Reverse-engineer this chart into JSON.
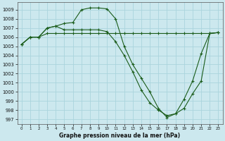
{
  "xlabel": "Graphe pression niveau de la mer (hPa)",
  "background_color": "#cce8ee",
  "grid_color": "#aad4dd",
  "line_color": "#1a5c1a",
  "ylim": [
    996.5,
    1009.8
  ],
  "xlim": [
    -0.5,
    23.5
  ],
  "yticks": [
    997,
    998,
    999,
    1000,
    1001,
    1002,
    1003,
    1004,
    1005,
    1006,
    1007,
    1008,
    1009
  ],
  "xticks": [
    0,
    1,
    2,
    3,
    4,
    5,
    6,
    7,
    8,
    9,
    10,
    11,
    12,
    13,
    14,
    15,
    16,
    17,
    18,
    19,
    20,
    21,
    22,
    23
  ],
  "series1_x": [
    0,
    1,
    2,
    3,
    4,
    5,
    6,
    7,
    8,
    9,
    10,
    11,
    12,
    13,
    14,
    15,
    16,
    17,
    18,
    19,
    20,
    21,
    22,
    23
  ],
  "series1_y": [
    1005.2,
    1006.0,
    1006.0,
    1006.4,
    1006.4,
    1006.4,
    1006.4,
    1006.4,
    1006.4,
    1006.4,
    1006.4,
    1006.4,
    1006.4,
    1006.4,
    1006.4,
    1006.4,
    1006.4,
    1006.4,
    1006.4,
    1006.4,
    1006.4,
    1006.4,
    1006.4,
    1006.5
  ],
  "series2_x": [
    0,
    1,
    2,
    3,
    4,
    5,
    6,
    7,
    8,
    9,
    10,
    11,
    12,
    13,
    14,
    15,
    16,
    17,
    18,
    19,
    20,
    21,
    22,
    23
  ],
  "series2_y": [
    1005.2,
    1006.0,
    1006.0,
    1007.0,
    1007.2,
    1007.5,
    1007.6,
    1009.0,
    1009.2,
    1009.2,
    1009.1,
    1008.0,
    1005.0,
    1003.0,
    1001.5,
    1000.0,
    998.2,
    997.2,
    997.6,
    999.2,
    1001.2,
    1004.2,
    1006.4,
    1006.5
  ],
  "series3_x": [
    0,
    1,
    2,
    3,
    4,
    5,
    6,
    7,
    8,
    9,
    10,
    11,
    12,
    13,
    14,
    15,
    16,
    17,
    18,
    19,
    20,
    21,
    22,
    23
  ],
  "series3_y": [
    1005.2,
    1006.0,
    1006.0,
    1007.0,
    1007.2,
    1006.8,
    1006.8,
    1006.8,
    1006.8,
    1006.8,
    1006.6,
    1005.5,
    1004.0,
    1002.2,
    1000.2,
    998.8,
    998.0,
    997.4,
    997.6,
    998.2,
    999.8,
    1001.2,
    1006.4,
    1006.5
  ]
}
